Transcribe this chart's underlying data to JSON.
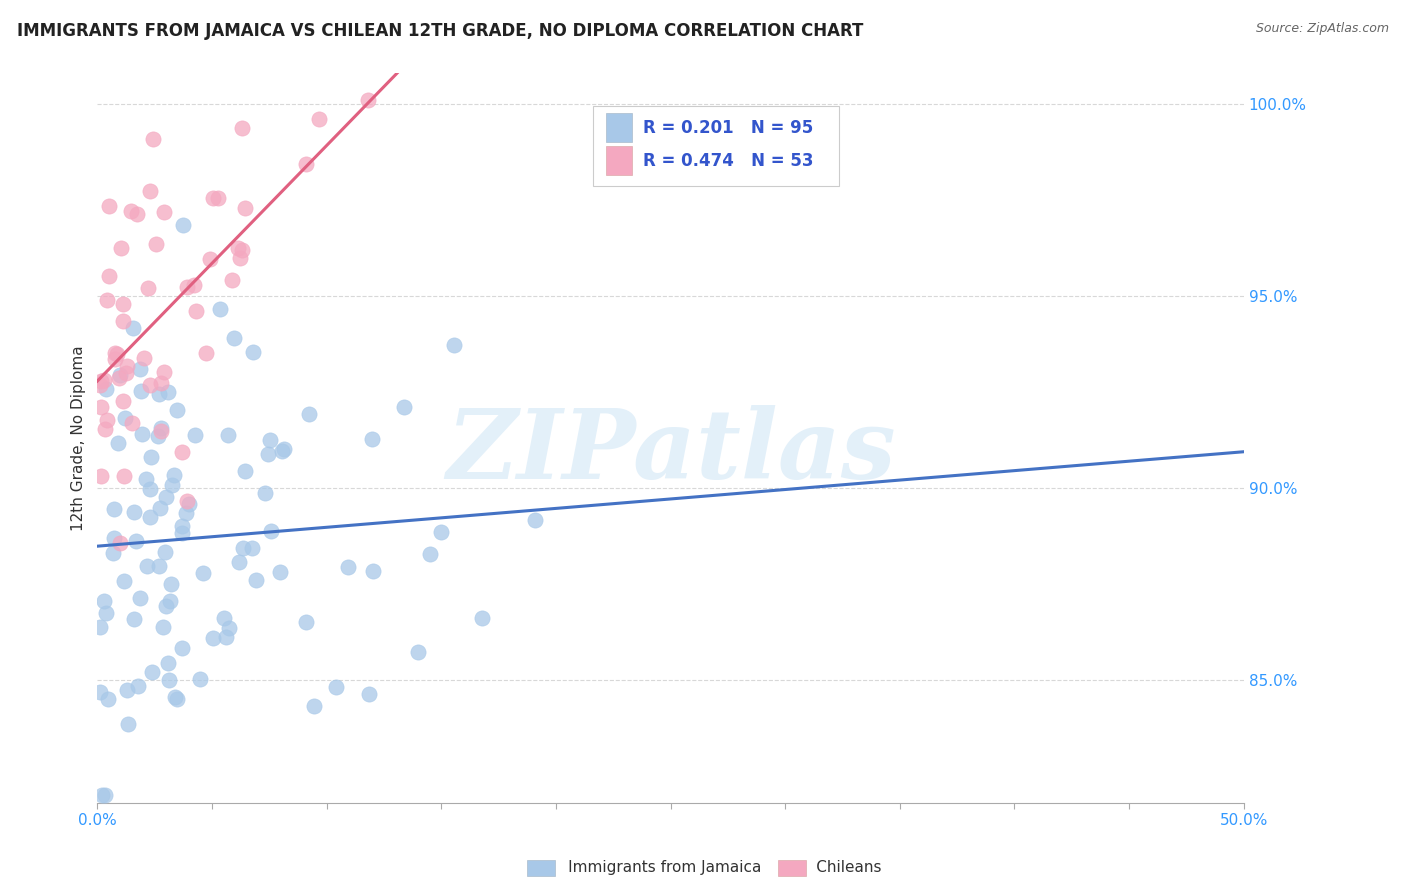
{
  "title": "IMMIGRANTS FROM JAMAICA VS CHILEAN 12TH GRADE, NO DIPLOMA CORRELATION CHART",
  "source": "Source: ZipAtlas.com",
  "ylabel": "12th Grade, No Diploma",
  "watermark": "ZIPatlas",
  "jamaica_R": 0.201,
  "jamaica_N": 95,
  "chilean_R": 0.474,
  "chilean_N": 53,
  "jamaica_label": "Immigrants from Jamaica",
  "chilean_label": "Chileans",
  "xlim": [
    0.0,
    0.5
  ],
  "ylim": [
    0.818,
    1.008
  ],
  "xtick_vals": [
    0.0,
    0.05,
    0.1,
    0.15,
    0.2,
    0.25,
    0.3,
    0.35,
    0.4,
    0.45,
    0.5
  ],
  "xtick_labels": [
    "0.0%",
    "",
    "",
    "",
    "",
    "",
    "",
    "",
    "",
    "",
    "50.0%"
  ],
  "ytick_vals": [
    0.85,
    0.9,
    0.95,
    1.0
  ],
  "ytick_labels": [
    "85.0%",
    "90.0%",
    "95.0%",
    "100.0%"
  ],
  "jamaica_line_color": "#4472c4",
  "chilean_line_color": "#e06080",
  "jamaica_dot_color": "#a8c8e8",
  "chilean_dot_color": "#f4a8c0",
  "background_color": "#ffffff",
  "grid_color": "#d8d8d8",
  "title_fontsize": 12,
  "axis_label_color": "#3399ff",
  "text_color": "#333333",
  "legend_R_N_color": "#3355cc"
}
